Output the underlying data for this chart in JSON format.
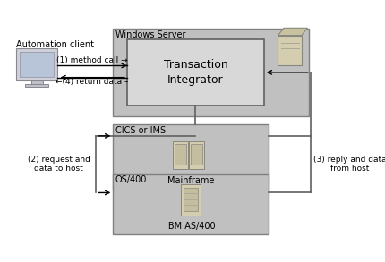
{
  "fig_width": 4.31,
  "fig_height": 2.93,
  "dpi": 100,
  "bg_color": "#ffffff",
  "box_fill_outer": "#c0c0c0",
  "box_fill_inner": "#d8d8d8",
  "box_edge": "#808080",
  "box_edge_inner": "#606060",
  "title_windows": "Windows Server",
  "title_cics": "CICS or IMS",
  "title_os400": "OS/400",
  "label_ti": "Transaction\nIntegrator",
  "label_mainframe": "Mainframe",
  "label_as400": "IBM AS/400",
  "label_automation": "Automation client",
  "label_1": "(1) method call →",
  "label_4": "←(4) return data –",
  "label_2": "(2) request and\ndata to host",
  "label_3": "(3) reply and data\nfrom host",
  "arrow_color": "#000000",
  "line_color": "#606060",
  "text_color": "#000000",
  "font_size": 7.5,
  "font_size_small": 6.5,
  "font_size_ti": 9
}
